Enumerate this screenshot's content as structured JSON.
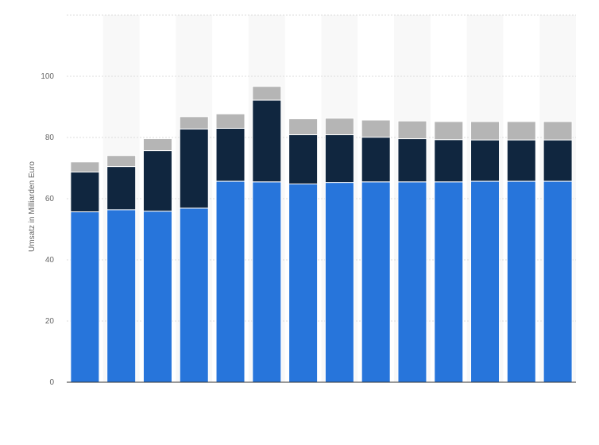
{
  "chart_data": {
    "type": "bar",
    "stacked": true,
    "title": "",
    "xlabel": "",
    "ylabel": "Umsatz in Milliarden Euro",
    "ylim": [
      0,
      120
    ],
    "yticks": [
      0,
      20,
      40,
      60,
      80,
      100
    ],
    "grid": true,
    "legend": "none",
    "categories": [
      "",
      "",
      "",
      "",
      "",
      "",
      "",
      "",
      "",
      "",
      "",
      "",
      "",
      ""
    ],
    "series": [
      {
        "color": "#2775db",
        "values": [
          55.7,
          56.4,
          55.9,
          56.9,
          65.7,
          65.5,
          64.8,
          65.3,
          65.5,
          65.5,
          65.5,
          65.7,
          65.7,
          65.7
        ]
      },
      {
        "color": "#10263f",
        "values": [
          13.0,
          14.1,
          19.8,
          25.9,
          17.3,
          26.7,
          16.1,
          15.6,
          14.6,
          14.1,
          13.8,
          13.5,
          13.5,
          13.5
        ]
      },
      {
        "color": "#b5b5b5",
        "values": [
          3.3,
          3.6,
          3.9,
          4.0,
          4.7,
          4.5,
          5.2,
          5.4,
          5.6,
          5.8,
          5.9,
          6.0,
          6.0,
          6.0
        ]
      }
    ]
  }
}
